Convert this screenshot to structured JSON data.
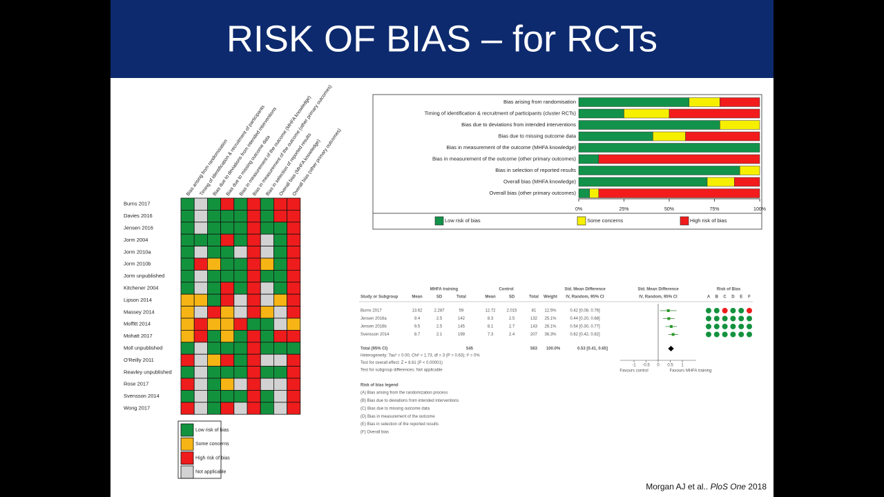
{
  "header": {
    "title": "RISK OF BIAS – for RCTs"
  },
  "traffic_light": {
    "domains": [
      "Bias arising from randomisation",
      "Timing of identification & recruitment of participants",
      "Bias due to deviations from intended interventions",
      "Bias due to missing outcome data",
      "Bias in measurement of the outcome (MHFA knowledge)",
      "Bias in measurement of the outcome (other primary outcomes)",
      "Bias in selection of reported results",
      "Overall bias (MHFA knowledge)",
      "Overall bias (other primary outcomes)"
    ],
    "studies": [
      "Burns 2017",
      "Davies 2016",
      "Jensen 2016",
      "Jorm 2004",
      "Jorm 2010a",
      "Jorm 2010b",
      "Jorm unpublished",
      "Kitchener 2004",
      "Lipson 2014",
      "Massey 2014",
      "Moffitt 2014",
      "Mohatt 2017",
      "Moll unpublished",
      "O'Reilly 2011",
      "Reavley unpublished",
      "Rose 2017",
      "Svensson 2014",
      "Wong 2017"
    ],
    "judgments": [
      [
        0,
        3,
        0,
        2,
        0,
        2,
        0,
        2,
        2
      ],
      [
        0,
        3,
        0,
        0,
        0,
        2,
        0,
        2,
        2
      ],
      [
        0,
        3,
        0,
        0,
        0,
        2,
        0,
        0,
        2
      ],
      [
        0,
        0,
        0,
        2,
        0,
        2,
        3,
        0,
        2
      ],
      [
        0,
        3,
        0,
        0,
        3,
        2,
        3,
        0,
        2
      ],
      [
        0,
        2,
        1,
        0,
        0,
        2,
        1,
        0,
        2
      ],
      [
        0,
        3,
        0,
        0,
        0,
        2,
        0,
        0,
        2
      ],
      [
        0,
        3,
        0,
        2,
        0,
        2,
        3,
        0,
        2
      ],
      [
        1,
        1,
        0,
        2,
        3,
        2,
        3,
        1,
        2
      ],
      [
        1,
        3,
        2,
        1,
        3,
        2,
        1,
        3,
        2
      ],
      [
        1,
        2,
        1,
        1,
        2,
        0,
        0,
        3,
        1
      ],
      [
        1,
        2,
        0,
        1,
        0,
        2,
        0,
        2,
        2
      ],
      [
        0,
        3,
        0,
        0,
        0,
        2,
        0,
        0,
        0
      ],
      [
        2,
        3,
        1,
        2,
        0,
        2,
        3,
        3,
        2
      ],
      [
        0,
        3,
        0,
        0,
        0,
        2,
        0,
        0,
        2
      ],
      [
        2,
        3,
        0,
        1,
        3,
        2,
        3,
        3,
        2
      ],
      [
        0,
        3,
        0,
        0,
        0,
        2,
        0,
        3,
        2
      ],
      [
        2,
        3,
        0,
        2,
        3,
        2,
        0,
        3,
        2
      ]
    ],
    "legend": [
      {
        "label": "Low risk of bias",
        "color": "#13923e"
      },
      {
        "label": "Some concerns",
        "color": "#f6b515"
      },
      {
        "label": "High risk of bias",
        "color": "#ee1c1c"
      },
      {
        "label": "Not applicable",
        "color": "#d2d2d2"
      }
    ]
  },
  "chart_data": {
    "type": "stacked_bar_h",
    "categories": [
      "Bias arising from randomisation",
      "Timing of identification & recruitment of participants (cluster RCTs)",
      "Bias due to deviations from intended interventions",
      "Bias due to missing outcome data",
      "Bias in measurement of the outcome (MHFA knowledge)",
      "Bias in measurement of the outcome (other primary outcomes)",
      "Bias in selection of reported results",
      "Overall bias (MHFA knowledge)",
      "Overall bias (other primary outcomes)"
    ],
    "series": [
      {
        "name": "Low risk of bias",
        "color": "#12924a",
        "values": [
          61,
          25,
          78,
          41,
          100,
          11,
          89,
          71,
          6
        ]
      },
      {
        "name": "Some concerns",
        "color": "#f7ef00",
        "values": [
          17,
          25,
          22,
          18,
          0,
          0,
          11,
          15,
          5
        ]
      },
      {
        "name": "High risk of bias",
        "color": "#f21c1c",
        "values": [
          22,
          50,
          0,
          41,
          0,
          89,
          0,
          14,
          89
        ]
      }
    ],
    "xlim": [
      0,
      100
    ],
    "xticks": [
      {
        "value": 0,
        "label": "0%"
      },
      {
        "value": 25,
        "label": "25%"
      },
      {
        "value": 50,
        "label": "50%"
      },
      {
        "value": 75,
        "label": "75%"
      },
      {
        "value": 100,
        "label": "100%"
      }
    ],
    "legend": "bottom"
  },
  "forest": {
    "groups": [
      "MHFA training",
      "Control",
      "Std. Mean Difference",
      "Std. Mean Difference",
      "Risk of Bias"
    ],
    "columns": [
      "Study or Subgroup",
      "Mean",
      "SD",
      "Total",
      "Mean",
      "SD",
      "Total",
      "Weight",
      "IV, Random, 95% CI",
      "IV, Random, 95% CI"
    ],
    "rob_letters": [
      "A",
      "B",
      "C",
      "D",
      "E",
      "F"
    ],
    "rows": [
      {
        "cells": [
          "Burns 2017",
          "13.62",
          "2.287",
          "59",
          "12.72",
          "2.015",
          "81",
          "12.5%",
          "0.42 [0.08, 0.76]"
        ],
        "ci": [
          0.42,
          0.08,
          0.76
        ],
        "rob": [
          0,
          0,
          2,
          0,
          0,
          2
        ]
      },
      {
        "cells": [
          "Jensen 2016a",
          "9.4",
          "2.5",
          "142",
          "8.3",
          "2.5",
          "132",
          "25.1%",
          "0.44 [0.20, 0.68]"
        ],
        "ci": [
          0.44,
          0.2,
          0.68
        ],
        "rob": [
          0,
          0,
          0,
          0,
          0,
          0
        ]
      },
      {
        "cells": [
          "Jensen 2016b",
          "9.5",
          "2.5",
          "145",
          "8.1",
          "2.7",
          "143",
          "26.1%",
          "0.54 [0.30, 0.77]"
        ],
        "ci": [
          0.54,
          0.3,
          0.77
        ],
        "rob": [
          0,
          0,
          0,
          0,
          0,
          0
        ]
      },
      {
        "cells": [
          "Svensson 2014",
          "8.7",
          "2.1",
          "199",
          "7.3",
          "2.4",
          "207",
          "36.3%",
          "0.62 [0.42, 0.82]"
        ],
        "ci": [
          0.62,
          0.42,
          0.82
        ],
        "rob": [
          0,
          0,
          0,
          0,
          0,
          0
        ]
      }
    ],
    "total": {
      "label": "Total (95% CI)",
      "n1": "545",
      "n2": "563",
      "weight": "100.0%",
      "ci_text": "0.53 [0.41, 0.65]",
      "ci": [
        0.53,
        0.41,
        0.65
      ]
    },
    "notes": [
      "Heterogeneity: Tau² = 0.00; Chi² = 1.73, df = 3 (P = 0.63); I² = 0%",
      "Test for overall effect: Z = 8.61 (P < 0.00001)",
      "Test for subgroup differences: Not applicable"
    ],
    "xlim": [
      -1,
      1
    ],
    "xticks": [
      -1,
      -0.5,
      0,
      0.5,
      1
    ],
    "favours": [
      "Favours control",
      "Favours MHFA training"
    ],
    "legend_title": "Risk of bias legend",
    "legend_items": [
      "(A) Bias arising from the randomization process",
      "(B) Bias due to deviations from intended interventions",
      "(C) Bias due to missing outcome data",
      "(D) Bias in measurement of the outcome",
      "(E) Bias in selection of the reported results",
      "(F) Overall bias"
    ]
  },
  "citation": {
    "authors": "Morgan AJ et al.. ",
    "journal": "PloS One",
    "year": " 2018"
  }
}
